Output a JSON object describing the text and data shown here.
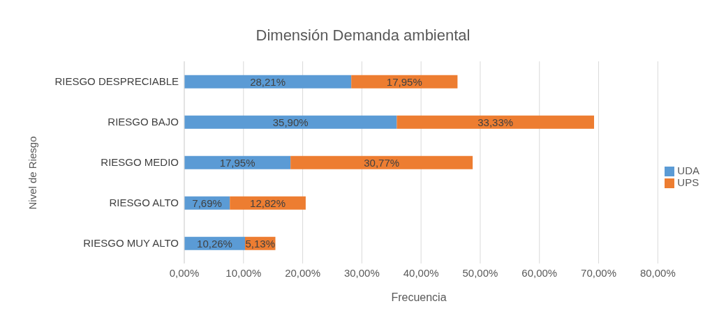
{
  "chart_data": {
    "type": "bar",
    "orientation": "horizontal",
    "stacked": true,
    "title": "Dimensión Demanda ambiental",
    "xlabel": "Frecuencia",
    "ylabel": "Nivel de Riesgo",
    "categories": [
      "RIESGO DESPRECIABLE",
      "RIESGO BAJO",
      "RIESGO MEDIO",
      "RIESGO ALTO",
      "RIESGO MUY ALTO"
    ],
    "series": [
      {
        "name": "UDA",
        "color": "#5b9bd5",
        "values": [
          28.21,
          35.9,
          17.95,
          7.69,
          10.26
        ],
        "value_labels": [
          "28,21%",
          "35,90%",
          "17,95%",
          "7,69%",
          "10,26%"
        ]
      },
      {
        "name": "UPS",
        "color": "#ed7d31",
        "values": [
          17.95,
          33.33,
          30.77,
          12.82,
          5.13
        ],
        "value_labels": [
          "17,95%",
          "33,33%",
          "30,77%",
          "12,82%",
          "5,13%"
        ]
      }
    ],
    "xlim": [
      0,
      80
    ],
    "xticks": [
      {
        "value": 0,
        "label": "0,00%"
      },
      {
        "value": 10,
        "label": "10,00%"
      },
      {
        "value": 20,
        "label": "20,00%"
      },
      {
        "value": 30,
        "label": "30,00%"
      },
      {
        "value": 40,
        "label": "40,00%"
      },
      {
        "value": 50,
        "label": "50,00%"
      },
      {
        "value": 60,
        "label": "60,00%"
      },
      {
        "value": 70,
        "label": "70,00%"
      },
      {
        "value": 80,
        "label": "80,00%"
      }
    ],
    "grid": "x",
    "legend": "right"
  }
}
